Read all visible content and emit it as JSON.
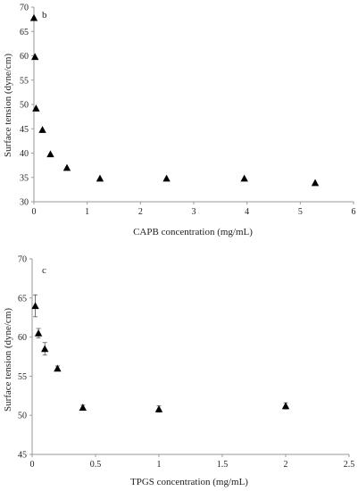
{
  "chart_data": [
    {
      "type": "scatter",
      "panel_label": "b",
      "xlabel": "CAPB concentration (mg/mL)",
      "ylabel": "Surface tension (dyne/cm)",
      "xlim": [
        0,
        6
      ],
      "ylim": [
        30,
        70
      ],
      "xticks": [
        0,
        1,
        2,
        3,
        4,
        5,
        6
      ],
      "yticks": [
        30,
        35,
        40,
        45,
        50,
        55,
        60,
        65,
        70
      ],
      "marker": "triangle",
      "points": [
        {
          "x": 0.0,
          "y": 67.8
        },
        {
          "x": 0.02,
          "y": 59.8
        },
        {
          "x": 0.04,
          "y": 49.2
        },
        {
          "x": 0.16,
          "y": 44.8
        },
        {
          "x": 0.31,
          "y": 39.8
        },
        {
          "x": 0.62,
          "y": 37.0
        },
        {
          "x": 1.24,
          "y": 34.8
        },
        {
          "x": 2.49,
          "y": 34.8
        },
        {
          "x": 3.95,
          "y": 34.8
        },
        {
          "x": 5.28,
          "y": 33.9
        }
      ]
    },
    {
      "type": "scatter",
      "panel_label": "c",
      "xlabel": "TPGS concentration (mg/mL)",
      "ylabel": "Surface tension (dyne/cm)",
      "xlim": [
        0,
        2.5
      ],
      "ylim": [
        45,
        70
      ],
      "xticks": [
        0,
        0.5,
        1,
        1.5,
        2,
        2.5
      ],
      "yticks": [
        45,
        50,
        55,
        60,
        65,
        70
      ],
      "marker": "triangle",
      "error_bars": true,
      "points": [
        {
          "x": 0.025,
          "y": 64.0,
          "err": 1.4
        },
        {
          "x": 0.05,
          "y": 60.5,
          "err": 0.6
        },
        {
          "x": 0.1,
          "y": 58.5,
          "err": 0.8
        },
        {
          "x": 0.2,
          "y": 56.0,
          "err": 0.3
        },
        {
          "x": 0.4,
          "y": 51.0,
          "err": 0.3
        },
        {
          "x": 1.0,
          "y": 50.8,
          "err": 0.4
        },
        {
          "x": 2.0,
          "y": 51.2,
          "err": 0.4
        }
      ]
    }
  ]
}
